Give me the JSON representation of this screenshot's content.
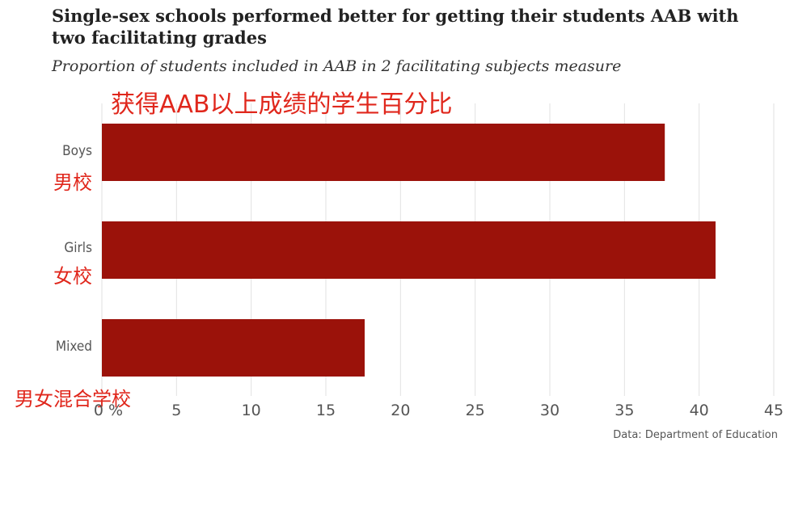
{
  "chart_data": {
    "type": "bar",
    "orientation": "horizontal",
    "title": "Single-sex schools performed better for getting their students AAB with two facilitating grades",
    "subtitle": "Proportion of students included in AAB in 2 facilitating subjects measure",
    "annotation_title": "获得AAB以上成绩的学生百分比",
    "categories": [
      "Boys",
      "Girls",
      "Mixed"
    ],
    "category_annotations": [
      "男校",
      "女校",
      "男女混合学校"
    ],
    "values": [
      37.7,
      41.1,
      17.6
    ],
    "xlim": [
      0,
      45
    ],
    "xticks": [
      "0 %",
      "5",
      "10",
      "15",
      "20",
      "25",
      "30",
      "35",
      "40",
      "45"
    ],
    "bar_color": "#9b120a",
    "grid": true,
    "source": "Data: Department of Education"
  }
}
